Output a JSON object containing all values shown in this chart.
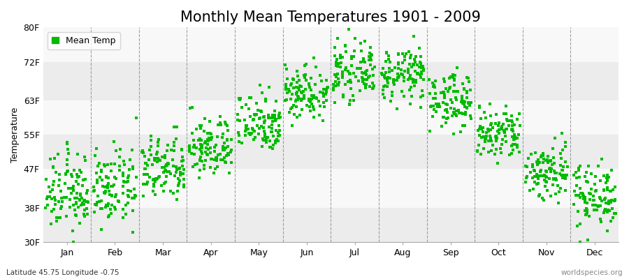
{
  "title": "Monthly Mean Temperatures 1901 - 2009",
  "ylabel": "Temperature",
  "xlabel_months": [
    "Jan",
    "Feb",
    "Mar",
    "Apr",
    "May",
    "Jun",
    "Jul",
    "Aug",
    "Sep",
    "Oct",
    "Nov",
    "Dec"
  ],
  "yticks": [
    30,
    38,
    47,
    55,
    63,
    72,
    80
  ],
  "ytick_labels": [
    "30F",
    "38F",
    "47F",
    "55F",
    "63F",
    "72F",
    "80F"
  ],
  "ylim": [
    30,
    80
  ],
  "xlim": [
    0,
    12
  ],
  "dot_color": "#00bb00",
  "dot_size": 7,
  "figure_background": "#ffffff",
  "plot_background": "#ffffff",
  "band_colors_h": [
    "#ececec",
    "#f8f8f8"
  ],
  "legend_label": "Mean Temp",
  "footnote_left": "Latitude 45.75 Longitude -0.75",
  "footnote_right": "worldspecies.org",
  "title_fontsize": 15,
  "axis_fontsize": 9,
  "tick_fontsize": 9,
  "n_years": 109,
  "monthly_means_F": [
    41.5,
    42.5,
    47.0,
    52.0,
    58.0,
    65.0,
    69.5,
    69.0,
    63.0,
    55.0,
    46.5,
    41.0
  ],
  "monthly_stds_F": [
    4.5,
    4.2,
    3.8,
    3.5,
    3.5,
    3.2,
    3.0,
    3.0,
    3.2,
    3.2,
    3.5,
    3.8
  ],
  "seed": 12345
}
